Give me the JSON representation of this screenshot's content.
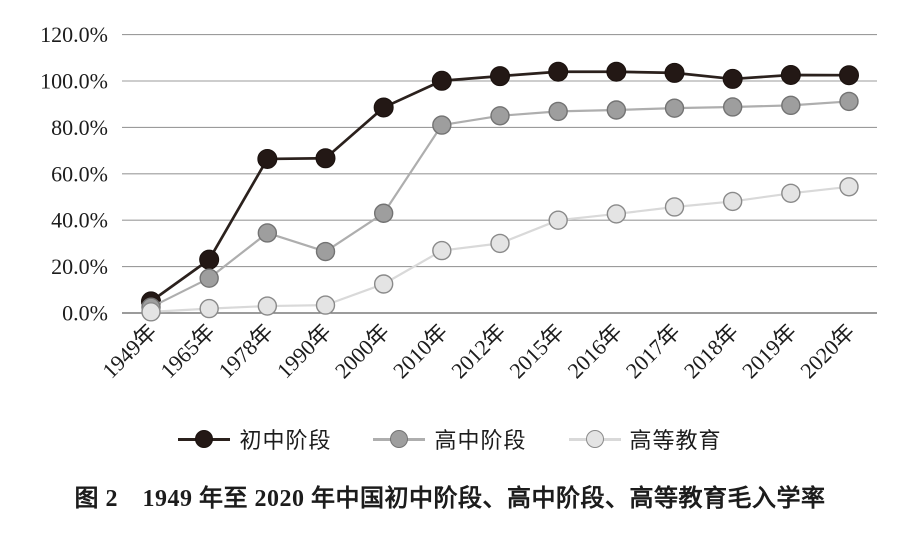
{
  "figure": {
    "caption": "图 2　1949 年至 2020 年中国初中阶段、高中阶段、高等教育毛入学率"
  },
  "chart_data": {
    "type": "line",
    "title": "",
    "caption": "图 2　1949 年至 2020 年中国初中阶段、高中阶段、高等教育毛入学率",
    "categories": [
      "1949年",
      "1965年",
      "1978年",
      "1990年",
      "2000年",
      "2010年",
      "2012年",
      "2015年",
      "2016年",
      "2017年",
      "2018年",
      "2019年",
      "2020年"
    ],
    "series": [
      {
        "name": "初中阶段",
        "values": [
          5.0,
          23.0,
          66.4,
          66.7,
          88.6,
          100.1,
          102.1,
          104.0,
          104.0,
          103.5,
          100.9,
          102.6,
          102.5
        ],
        "line_color": "#2b211d",
        "marker_fill": "#231815",
        "marker_stroke": "#1a110e"
      },
      {
        "name": "高中阶段",
        "values": [
          2.5,
          15.0,
          34.5,
          26.5,
          43.0,
          81.0,
          85.0,
          86.9,
          87.5,
          88.3,
          88.8,
          89.5,
          91.2
        ],
        "line_color": "#aeaeae",
        "marker_fill": "#9e9e9e",
        "marker_stroke": "#737373"
      },
      {
        "name": "高等教育",
        "values": [
          0.5,
          1.9,
          3.0,
          3.4,
          12.5,
          26.9,
          30.0,
          40.0,
          42.7,
          45.7,
          48.1,
          51.6,
          54.4
        ],
        "line_color": "#d9d9d9",
        "marker_fill": "#e4e4e4",
        "marker_stroke": "#8a8a8a"
      }
    ],
    "ylim": [
      0,
      120
    ],
    "ytick_step": 20,
    "ytick_labels": [
      "0.0%",
      "20.0%",
      "40.0%",
      "60.0%",
      "80.0%",
      "100.0%",
      "120.0%"
    ],
    "grid": true,
    "legend_position": "bottom",
    "gridline_color": "#9b9b9b",
    "axis_color": "#7a7a7a"
  }
}
